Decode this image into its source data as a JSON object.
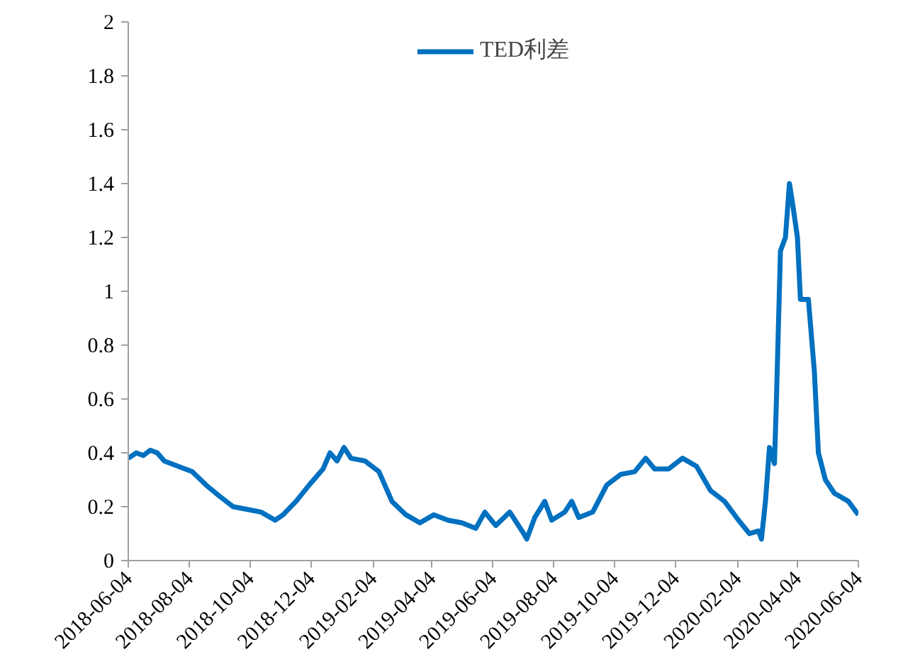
{
  "chart_data": {
    "type": "line",
    "legend": "top",
    "grid": false,
    "xlim": [
      "2018-06-04",
      "2020-06-04"
    ],
    "xticks": [
      "2018-06-04",
      "2018-08-04",
      "2018-10-04",
      "2018-12-04",
      "2019-02-04",
      "2019-04-04",
      "2019-06-04",
      "2019-08-04",
      "2019-10-04",
      "2019-12-04",
      "2020-02-04",
      "2020-04-04",
      "2020-06-04"
    ],
    "ylim": [
      0,
      2
    ],
    "yticks": [
      0,
      0.2,
      0.4,
      0.6,
      0.8,
      1,
      1.2,
      1.4,
      1.6,
      1.8,
      2
    ],
    "x": [
      "2018-06-04",
      "2018-06-12",
      "2018-06-19",
      "2018-06-26",
      "2018-07-03",
      "2018-07-10",
      "2018-07-24",
      "2018-08-07",
      "2018-08-21",
      "2018-09-03",
      "2018-09-17",
      "2018-10-01",
      "2018-10-15",
      "2018-10-29",
      "2018-11-06",
      "2018-11-19",
      "2018-12-02",
      "2018-12-16",
      "2018-12-23",
      "2018-12-30",
      "2019-01-06",
      "2019-01-13",
      "2019-01-27",
      "2019-02-10",
      "2019-02-23",
      "2019-03-09",
      "2019-03-23",
      "2019-04-06",
      "2019-04-20",
      "2019-05-04",
      "2019-05-18",
      "2019-05-27",
      "2019-06-07",
      "2019-06-21",
      "2019-07-05",
      "2019-07-08",
      "2019-07-16",
      "2019-07-26",
      "2019-08-02",
      "2019-08-15",
      "2019-08-22",
      "2019-08-29",
      "2019-09-12",
      "2019-09-26",
      "2019-10-10",
      "2019-10-24",
      "2019-11-04",
      "2019-11-13",
      "2019-11-27",
      "2019-12-11",
      "2019-12-25",
      "2020-01-08",
      "2020-01-22",
      "2020-02-05",
      "2020-02-16",
      "2020-02-25",
      "2020-02-28",
      "2020-03-03",
      "2020-03-07",
      "2020-03-12",
      "2020-03-14",
      "2020-03-18",
      "2020-03-23",
      "2020-03-27",
      "2020-03-30",
      "2020-04-04",
      "2020-04-07",
      "2020-04-15",
      "2020-04-21",
      "2020-04-25",
      "2020-05-02",
      "2020-05-11",
      "2020-05-25",
      "2020-06-04"
    ],
    "series": [
      {
        "name": "TED利差",
        "color": "#0070c0",
        "values": [
          0.38,
          0.4,
          0.39,
          0.41,
          0.4,
          0.37,
          0.35,
          0.33,
          0.28,
          0.24,
          0.2,
          0.19,
          0.18,
          0.15,
          0.17,
          0.22,
          0.28,
          0.34,
          0.4,
          0.37,
          0.42,
          0.38,
          0.37,
          0.33,
          0.22,
          0.17,
          0.14,
          0.17,
          0.15,
          0.14,
          0.12,
          0.18,
          0.13,
          0.18,
          0.1,
          0.08,
          0.16,
          0.22,
          0.15,
          0.18,
          0.22,
          0.16,
          0.18,
          0.28,
          0.32,
          0.33,
          0.38,
          0.34,
          0.34,
          0.38,
          0.35,
          0.26,
          0.22,
          0.15,
          0.1,
          0.11,
          0.08,
          0.22,
          0.42,
          0.36,
          0.6,
          1.15,
          1.2,
          1.4,
          1.33,
          1.2,
          0.97,
          0.97,
          0.7,
          0.4,
          0.3,
          0.25,
          0.22,
          0.17
        ]
      }
    ]
  }
}
